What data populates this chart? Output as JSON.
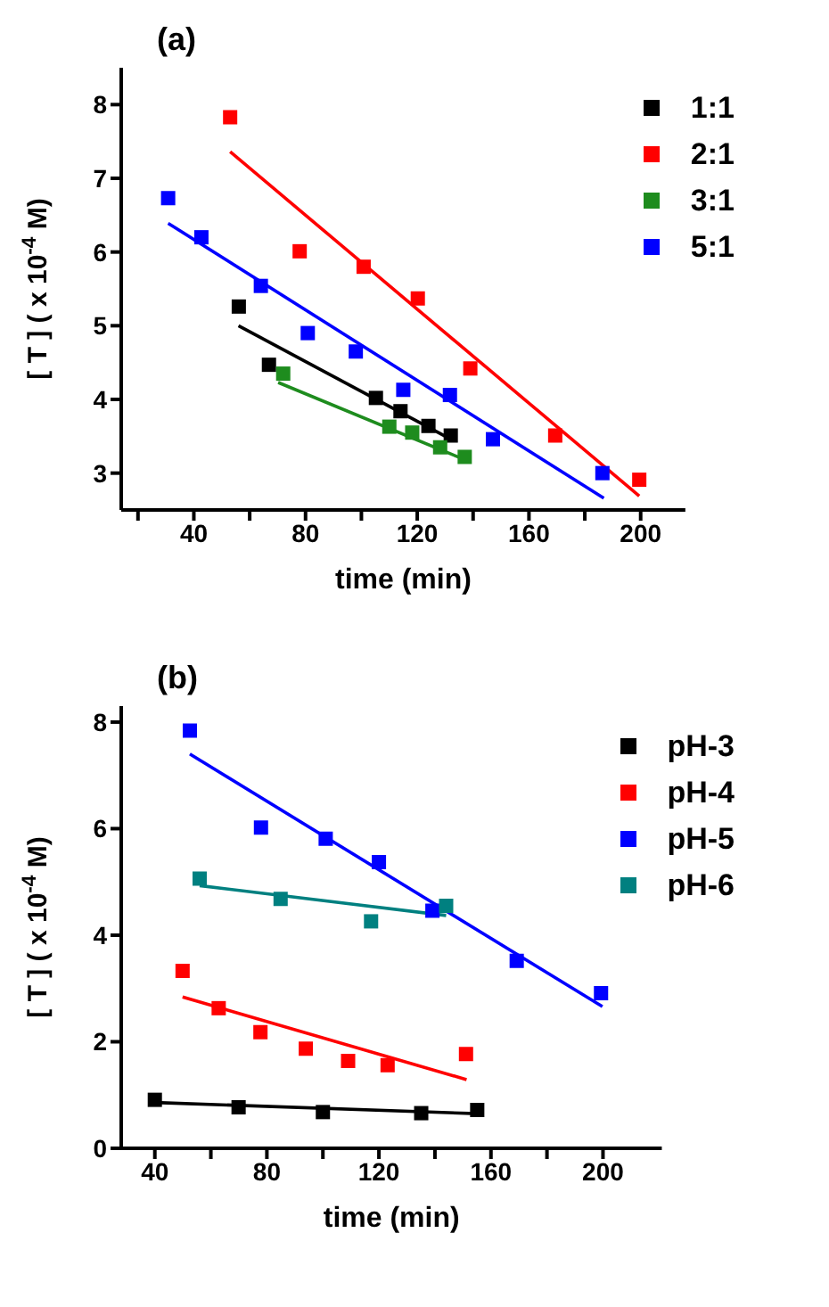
{
  "chart_data": [
    {
      "type": "scatter",
      "title": "(a)",
      "xlabel": "time (min)",
      "ylabel": "[ T ] ( x 10$^{-4}$ M)",
      "xlim": [
        14,
        216
      ],
      "ylim": [
        2.5,
        8.5
      ],
      "xticks": [
        {
          "value": 20,
          "label": null
        },
        40,
        {
          "value": 60,
          "label": null
        },
        80,
        {
          "value": 100,
          "label": null
        },
        120,
        {
          "value": 140,
          "label": null
        },
        160,
        {
          "value": 180,
          "label": null
        },
        200
      ],
      "yticks": [
        3,
        4,
        5,
        6,
        7,
        8
      ],
      "grid": false,
      "legend": "top right",
      "series": [
        {
          "name": "1:1",
          "color": "#000000",
          "marker": "square",
          "x": [
            56.1,
            66.9,
            105.2,
            114,
            124,
            132
          ],
          "values": [
            5.26,
            4.47,
            4.02,
            3.84,
            3.64,
            3.51
          ]
        },
        {
          "name": "2:1",
          "color": "#ff0000",
          "marker": "square",
          "x": [
            53,
            77.9,
            100.8,
            120.2,
            139,
            169.4,
            199.5
          ],
          "values": [
            7.83,
            6.01,
            5.8,
            5.37,
            4.42,
            3.51,
            2.91
          ]
        },
        {
          "name": "3:1",
          "color": "#1e8c1e",
          "marker": "square",
          "x": [
            72,
            110,
            118.2,
            128.2,
            137
          ],
          "values": [
            4.35,
            3.63,
            3.55,
            3.35,
            3.22
          ]
        },
        {
          "name": "5:1",
          "color": "#0000ff",
          "marker": "square",
          "x": [
            30.8,
            42.7,
            64,
            80.8,
            98,
            115,
            131.7,
            147.1,
            186.3
          ],
          "values": [
            6.73,
            6.2,
            5.54,
            4.9,
            4.65,
            4.13,
            4.06,
            3.46,
            3.0
          ]
        },
        {
          "type": "line",
          "color": "#000000",
          "marker": "none",
          "line_style": "solid",
          "x": [
            56,
            132
          ],
          "values": [
            5.0,
            3.46
          ]
        },
        {
          "type": "line",
          "color": "#ff0000",
          "marker": "none",
          "line_style": "solid",
          "x": [
            53,
            199.5
          ],
          "values": [
            7.36,
            2.69
          ]
        },
        {
          "type": "line",
          "color": "#1e8c1e",
          "marker": "none",
          "line_style": "solid",
          "x": [
            70.2,
            136.5
          ],
          "values": [
            4.23,
            3.19
          ]
        },
        {
          "type": "line",
          "color": "#0000ff",
          "marker": "none",
          "line_style": "solid",
          "x": [
            30.8,
            186.8
          ],
          "values": [
            6.39,
            2.66
          ]
        }
      ]
    },
    {
      "type": "scatter",
      "title": "(b)",
      "xlabel": "time (min)",
      "ylabel": "[ T ] ( x 10$^{-4}$ M)",
      "xlim": [
        28,
        221
      ],
      "ylim": [
        0,
        8.3
      ],
      "xticks": [
        40,
        {
          "value": 60,
          "label": null
        },
        80,
        {
          "value": 100,
          "label": null
        },
        120,
        {
          "value": 140,
          "label": null
        },
        160,
        {
          "value": 180,
          "label": null
        },
        200
      ],
      "yticks": [
        0,
        2,
        4,
        6,
        8
      ],
      "grid": false,
      "legend": "top right",
      "series": [
        {
          "name": "pH-3",
          "color": "#000000",
          "marker": "square",
          "x": [
            40,
            69.9,
            100,
            135.1,
            155.1
          ],
          "values": [
            0.91,
            0.77,
            0.68,
            0.66,
            0.72
          ]
        },
        {
          "name": "pH-4",
          "color": "#ff0000",
          "marker": "square",
          "x": [
            49.9,
            62.8,
            77.7,
            93.9,
            109,
            123.1,
            151.1
          ],
          "values": [
            3.33,
            2.63,
            2.18,
            1.87,
            1.64,
            1.56,
            1.77
          ]
        },
        {
          "name": "pH-5",
          "color": "#0000ff",
          "marker": "square",
          "x": [
            52.5,
            77.9,
            101,
            120,
            139.1,
            169.2,
            199.3
          ],
          "values": [
            7.84,
            6.02,
            5.81,
            5.37,
            4.46,
            3.52,
            2.91
          ]
        },
        {
          "name": "pH-6",
          "color": "#008080",
          "marker": "square",
          "x": [
            56,
            84.9,
            117.2,
            144
          ],
          "values": [
            5.06,
            4.68,
            4.26,
            4.55
          ]
        },
        {
          "type": "line",
          "color": "#000000",
          "marker": "none",
          "line_style": "solid",
          "x": [
            40,
            155
          ],
          "values": [
            0.86,
            0.65
          ]
        },
        {
          "type": "line",
          "color": "#ff0000",
          "marker": "none",
          "line_style": "solid",
          "x": [
            49.9,
            151.3
          ],
          "values": [
            2.84,
            1.29
          ]
        },
        {
          "type": "line",
          "color": "#0000ff",
          "marker": "none",
          "line_style": "solid",
          "x": [
            52.5,
            199.8
          ],
          "values": [
            7.4,
            2.66
          ]
        },
        {
          "type": "line",
          "color": "#008080",
          "marker": "none",
          "line_style": "solid",
          "x": [
            56,
            144
          ],
          "values": [
            4.93,
            4.37
          ]
        }
      ]
    }
  ]
}
